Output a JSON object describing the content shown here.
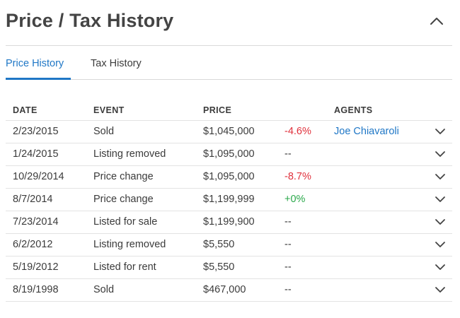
{
  "header": {
    "title": "Price / Tax History"
  },
  "tabs": [
    {
      "label": "Price History",
      "active": true
    },
    {
      "label": "Tax History",
      "active": false
    }
  ],
  "table": {
    "columns": {
      "date": "DATE",
      "event": "EVENT",
      "price": "PRICE",
      "agents": "AGENTS"
    },
    "rows": [
      {
        "date": "2/23/2015",
        "event": "Sold",
        "price": "$1,045,000",
        "change": "-4.6%",
        "change_type": "neg",
        "agent": "Joe Chiavaroli"
      },
      {
        "date": "1/24/2015",
        "event": "Listing removed",
        "price": "$1,095,000",
        "change": "--",
        "change_type": "none",
        "agent": ""
      },
      {
        "date": "10/29/2014",
        "event": "Price change",
        "price": "$1,095,000",
        "change": "-8.7%",
        "change_type": "neg",
        "agent": ""
      },
      {
        "date": "8/7/2014",
        "event": "Price change",
        "price": "$1,199,999",
        "change": "+0%",
        "change_type": "pos",
        "agent": ""
      },
      {
        "date": "7/23/2014",
        "event": "Listed for sale",
        "price": "$1,199,900",
        "change": "--",
        "change_type": "none",
        "agent": ""
      },
      {
        "date": "6/2/2012",
        "event": "Listing removed",
        "price": "$5,550",
        "change": "--",
        "change_type": "none",
        "agent": ""
      },
      {
        "date": "5/19/2012",
        "event": "Listed for rent",
        "price": "$5,550",
        "change": "--",
        "change_type": "none",
        "agent": ""
      },
      {
        "date": "8/19/1998",
        "event": "Sold",
        "price": "$467,000",
        "change": "--",
        "change_type": "none",
        "agent": ""
      }
    ]
  },
  "icons": {
    "collapse": "chevron-up-icon",
    "expand": "chevron-down-icon"
  },
  "colors": {
    "accent": "#1f77c6",
    "negative": "#e0313c",
    "positive": "#2aa84a"
  }
}
